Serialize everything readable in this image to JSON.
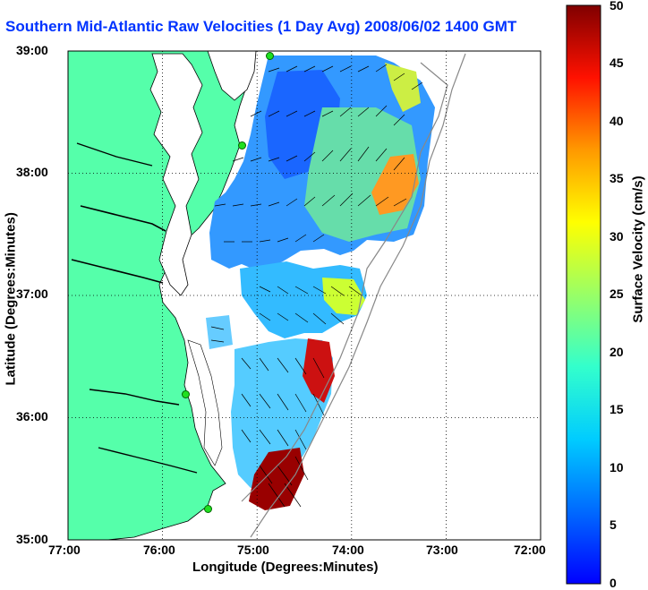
{
  "title": "Southern Mid-Atlantic Raw Velocities (1 Day Avg) 2008/06/02 1400 GMT",
  "axes": {
    "xlabel": "Longitude (Degrees:Minutes)",
    "ylabel": "Latitude (Degrees:Minutes)",
    "xticks": [
      "77:00",
      "76:00",
      "75:00",
      "74:00",
      "73:00",
      "72:00"
    ],
    "yticks": [
      "39:00",
      "38:00",
      "37:00",
      "36:00",
      "35:00"
    ]
  },
  "colorbar": {
    "label": "Surface Velocity (cm/s)",
    "ticks": [
      "50",
      "45",
      "40",
      "35",
      "30",
      "25",
      "20",
      "15",
      "10",
      "5",
      "0"
    ],
    "min": 0,
    "max": 50
  },
  "colors": {
    "land": "#55ffaa",
    "title": "#0033ff",
    "grid": "#000000",
    "station": "#20e020"
  },
  "icons": [
    "hf-radar-station-marker"
  ]
}
